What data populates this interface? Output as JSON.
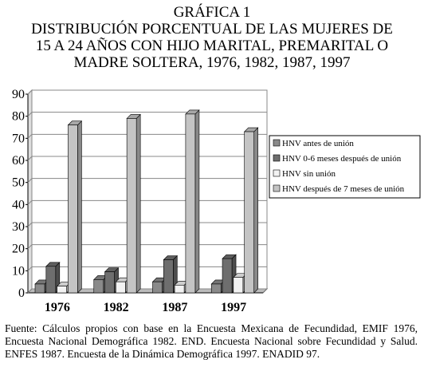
{
  "chart_data": {
    "type": "bar3d",
    "title": "GRÁFICA 1",
    "subtitle": [
      "DISTRIBUCIÓN PORCENTUAL DE LAS MUJERES DE",
      "15 A 24 AÑOS CON HIJO MARITAL, PREMARITAL O",
      "MADRE SOLTERA, 1976, 1982, 1987, 1997"
    ],
    "categories": [
      "1976",
      "1982",
      "1987",
      "1997"
    ],
    "series": [
      {
        "name": "HNV antes de unión",
        "color": "#8a8a8a",
        "values": [
          4,
          6,
          5,
          4
        ]
      },
      {
        "name": "HNV 0-6 meses después de unión",
        "color": "#6e6e6e",
        "values": [
          12,
          9.5,
          15,
          15.5
        ]
      },
      {
        "name": "HNV sin unión",
        "color": "#f2f2f2",
        "values": [
          3,
          5,
          3.5,
          7
        ]
      },
      {
        "name": "HNV después de 7 meses de unión",
        "color": "#c4c4c4",
        "values": [
          76,
          79,
          81,
          73
        ]
      }
    ],
    "ylim": [
      0,
      90
    ],
    "yticks": [
      0,
      10,
      20,
      30,
      40,
      50,
      60,
      70,
      80,
      90
    ],
    "grid": true,
    "note": "Fuente: Cálculos propios con base en la Encuesta Mexicana de Fecundidad, EMIF 1976, Encuesta Nacional Demográfica 1982. END. Encuesta Nacional sobre Fecundidad y Salud. ENFES 1987. Encuesta de la Dinámica Demográfica 1997. ENADID 97."
  }
}
